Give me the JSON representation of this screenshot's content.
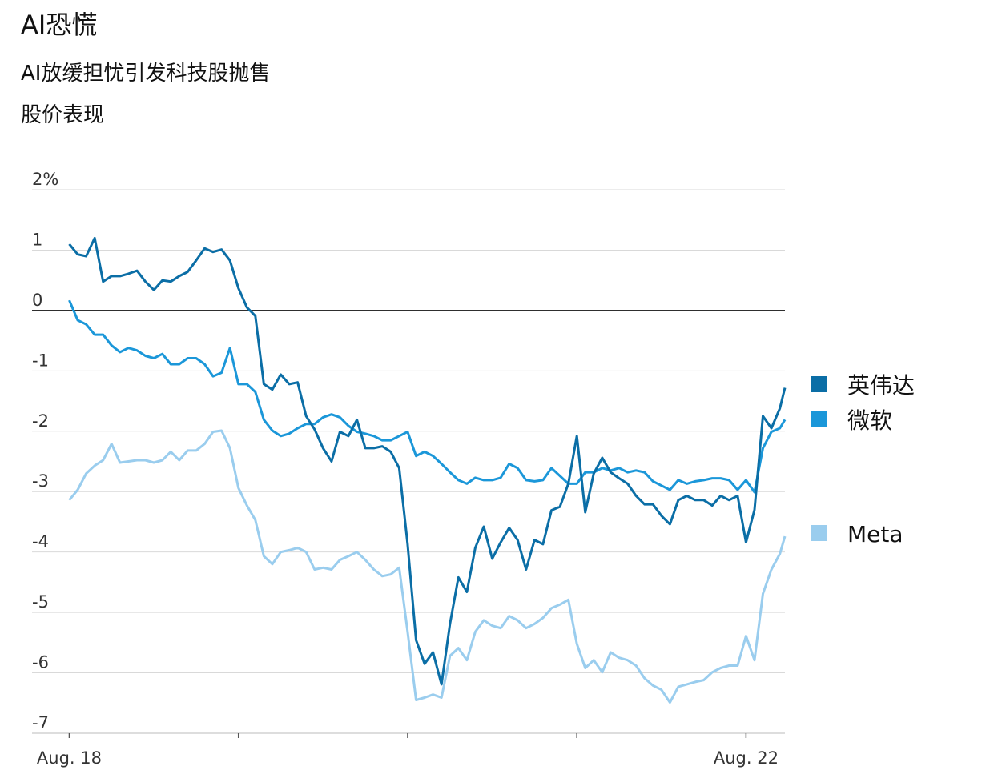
{
  "chart_data": {
    "type": "line",
    "title": "AI恐慌",
    "subtitle": "AI放缓担忧引发科技股抛售",
    "y_label": "股价表现",
    "x": [
      0,
      0.05,
      0.1,
      0.15,
      0.2,
      0.25,
      0.3,
      0.35,
      0.4,
      0.45,
      0.5,
      0.55,
      0.6,
      0.65,
      0.7,
      0.75,
      0.8,
      0.85,
      0.9,
      0.95,
      1,
      1.05,
      1.1,
      1.15,
      1.2,
      1.25,
      1.3,
      1.35,
      1.4,
      1.45,
      1.5,
      1.55,
      1.6,
      1.65,
      1.7,
      1.75,
      1.8,
      1.85,
      1.9,
      1.95,
      2,
      2.05,
      2.1,
      2.15,
      2.2,
      2.25,
      2.3,
      2.35,
      2.4,
      2.45,
      2.5,
      2.55,
      2.6,
      2.65,
      2.7,
      2.75,
      2.8,
      2.85,
      2.9,
      2.95,
      3,
      3.05,
      3.1,
      3.15,
      3.2,
      3.25,
      3.3,
      3.35,
      3.4,
      3.45,
      3.5,
      3.55,
      3.6,
      3.65,
      3.7,
      3.75,
      3.8,
      3.85,
      3.9,
      3.95,
      4,
      4.05,
      4.1,
      4.15,
      4.2,
      4.23
    ],
    "series": [
      {
        "name": "英伟达",
        "color": "#0b6ea6",
        "values": [
          1.1,
          0.93,
          0.9,
          1.2,
          0.48,
          0.57,
          0.57,
          0.61,
          0.66,
          0.48,
          0.34,
          0.5,
          0.48,
          0.57,
          0.64,
          0.83,
          1.03,
          0.97,
          1.01,
          0.83,
          0.37,
          0.05,
          -0.09,
          -1.22,
          -1.31,
          -1.06,
          -1.22,
          -1.19,
          -1.75,
          -1.97,
          -2.28,
          -2.5,
          -2.01,
          -2.08,
          -1.81,
          -2.28,
          -2.28,
          -2.25,
          -2.34,
          -2.61,
          -3.87,
          -5.46,
          -5.85,
          -5.66,
          -6.19,
          -5.19,
          -4.42,
          -4.66,
          -3.93,
          -3.58,
          -4.11,
          -3.84,
          -3.6,
          -3.8,
          -4.29,
          -3.8,
          -3.87,
          -3.31,
          -3.25,
          -2.87,
          -2.08,
          -3.34,
          -2.7,
          -2.44,
          -2.68,
          -2.78,
          -2.87,
          -3.07,
          -3.21,
          -3.21,
          -3.4,
          -3.54,
          -3.14,
          -3.07,
          -3.14,
          -3.14,
          -3.23,
          -3.07,
          -3.14,
          -3.07,
          -3.84,
          -3.3,
          -1.75,
          -1.95,
          -1.62,
          -1.28
        ]
      },
      {
        "name": "微软",
        "color": "#1b97d9",
        "values": [
          0.17,
          -0.16,
          -0.23,
          -0.4,
          -0.4,
          -0.58,
          -0.69,
          -0.62,
          -0.66,
          -0.75,
          -0.79,
          -0.72,
          -0.89,
          -0.89,
          -0.79,
          -0.79,
          -0.89,
          -1.09,
          -1.03,
          -0.62,
          -1.22,
          -1.22,
          -1.35,
          -1.81,
          -1.99,
          -2.08,
          -2.04,
          -1.95,
          -1.88,
          -1.88,
          -1.77,
          -1.72,
          -1.77,
          -1.91,
          -2.01,
          -2.04,
          -2.08,
          -2.15,
          -2.15,
          -2.08,
          -2.01,
          -2.41,
          -2.34,
          -2.41,
          -2.54,
          -2.68,
          -2.81,
          -2.87,
          -2.77,
          -2.81,
          -2.81,
          -2.77,
          -2.54,
          -2.61,
          -2.81,
          -2.83,
          -2.81,
          -2.61,
          -2.74,
          -2.87,
          -2.87,
          -2.68,
          -2.68,
          -2.61,
          -2.65,
          -2.61,
          -2.68,
          -2.65,
          -2.68,
          -2.83,
          -2.9,
          -2.97,
          -2.81,
          -2.87,
          -2.83,
          -2.81,
          -2.78,
          -2.78,
          -2.81,
          -2.97,
          -2.81,
          -3.01,
          -2.28,
          -2.01,
          -1.95,
          -1.81
        ]
      },
      {
        "name": "Meta",
        "color": "#9acdee",
        "values": [
          -3.14,
          -2.97,
          -2.7,
          -2.57,
          -2.48,
          -2.21,
          -2.52,
          -2.5,
          -2.48,
          -2.48,
          -2.52,
          -2.48,
          -2.34,
          -2.48,
          -2.32,
          -2.32,
          -2.21,
          -2.01,
          -1.99,
          -2.28,
          -2.94,
          -3.23,
          -3.47,
          -4.07,
          -4.2,
          -4.0,
          -3.97,
          -3.93,
          -4.0,
          -4.29,
          -4.26,
          -4.29,
          -4.13,
          -4.07,
          -4.0,
          -4.13,
          -4.29,
          -4.4,
          -4.37,
          -4.26,
          -5.32,
          -6.45,
          -6.41,
          -6.36,
          -6.41,
          -5.72,
          -5.59,
          -5.79,
          -5.32,
          -5.13,
          -5.22,
          -5.26,
          -5.06,
          -5.13,
          -5.26,
          -5.19,
          -5.09,
          -4.93,
          -4.87,
          -4.79,
          -5.52,
          -5.92,
          -5.79,
          -5.99,
          -5.66,
          -5.75,
          -5.79,
          -5.88,
          -6.09,
          -6.21,
          -6.28,
          -6.49,
          -6.23,
          -6.19,
          -6.15,
          -6.12,
          -5.99,
          -5.92,
          -5.88,
          -5.88,
          -5.39,
          -5.79,
          -4.69,
          -4.29,
          -4.03,
          -3.74
        ]
      }
    ],
    "xlim": [
      -0.22,
      4.23
    ],
    "xticks": [
      {
        "value": 0,
        "label": "Aug. 18"
      },
      {
        "value": 1,
        "label": null
      },
      {
        "value": 2,
        "label": null
      },
      {
        "value": 3,
        "label": null
      },
      {
        "value": 4,
        "label": "Aug. 22"
      }
    ],
    "ylim": [
      -7,
      2
    ],
    "yticks": [
      {
        "value": 2,
        "label": "2%"
      },
      1,
      0,
      -1,
      -2,
      -3,
      -4,
      -5,
      -6,
      -7
    ],
    "grid": true,
    "legend": "right"
  }
}
